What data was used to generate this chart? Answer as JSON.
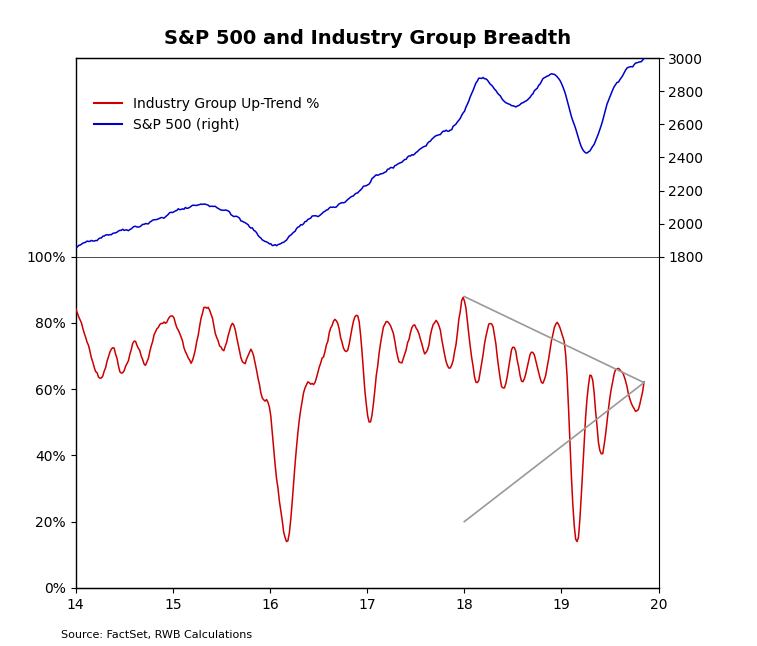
{
  "title": "S&P 500 and Industry Group Breadth",
  "source_text": "Source: FactSet, RWB Calculations",
  "legend_line1": "Industry Group Up-Trend %",
  "legend_line2": "S&P 500 (right)",
  "x_min": 14,
  "x_max": 20,
  "y_left_min": 0,
  "y_left_max": 1.6,
  "y_left_display_max": 1.0,
  "y_right_min": 1800,
  "y_right_max": 4600,
  "y_right_display_max": 3000,
  "left_ticks": [
    0.0,
    0.2,
    0.4,
    0.6,
    0.8,
    1.0
  ],
  "left_tick_labels": [
    "0%",
    "20%",
    "40%",
    "60%",
    "80%",
    "100%"
  ],
  "right_ticks": [
    1800,
    2000,
    2200,
    2400,
    2600,
    2800,
    3000
  ],
  "x_ticks": [
    14,
    15,
    16,
    17,
    18,
    19,
    20
  ],
  "color_red": "#CC0000",
  "color_blue": "#0000CC",
  "color_gray": "#999999",
  "background": "#FFFFFF",
  "title_fontsize": 14,
  "label_fontsize": 10,
  "tick_fontsize": 10,
  "source_fontsize": 8
}
